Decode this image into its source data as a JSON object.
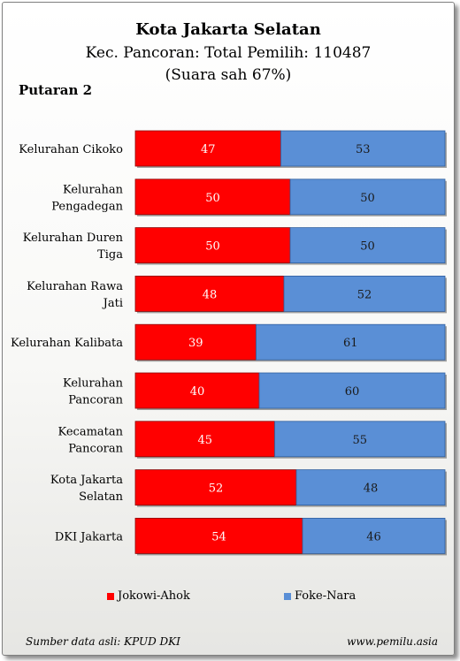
{
  "header": {
    "title": "Kota Jakarta Selatan",
    "subtitle": "Kec. Pancoran: Total Pemilih: 110487",
    "note": "(Suara sah 67%)",
    "round_label": "Putaran 2"
  },
  "footer": {
    "source": "Sumber data asli: KPUD DKI",
    "site": "www.pemilu.asia"
  },
  "colors": {
    "series_1": "#ff0000",
    "series_2": "#5a8fd6"
  },
  "chart_data": {
    "type": "bar",
    "orientation": "horizontal",
    "stacked": true,
    "categories": [
      [
        "Kelurahan Cikoko"
      ],
      [
        "Kelurahan",
        "Pengadegan"
      ],
      [
        "Kelurahan Duren",
        "Tiga"
      ],
      [
        "Kelurahan Rawa",
        "Jati"
      ],
      [
        "Kelurahan Kalibata"
      ],
      [
        "Kelurahan",
        "Pancoran"
      ],
      [
        "Kecamatan",
        "Pancoran"
      ],
      [
        "Kota Jakarta",
        "Selatan"
      ],
      [
        "DKI Jakarta"
      ]
    ],
    "series": [
      {
        "name": "Jokowi-Ahok",
        "values": [
          47,
          50,
          50,
          48,
          39,
          40,
          45,
          52,
          54
        ]
      },
      {
        "name": "Foke-Nara",
        "values": [
          53,
          50,
          50,
          52,
          61,
          60,
          55,
          48,
          46
        ]
      }
    ],
    "xlim": [
      0,
      100
    ],
    "grid": false,
    "data_labels": true,
    "legend_position": "bottom"
  }
}
